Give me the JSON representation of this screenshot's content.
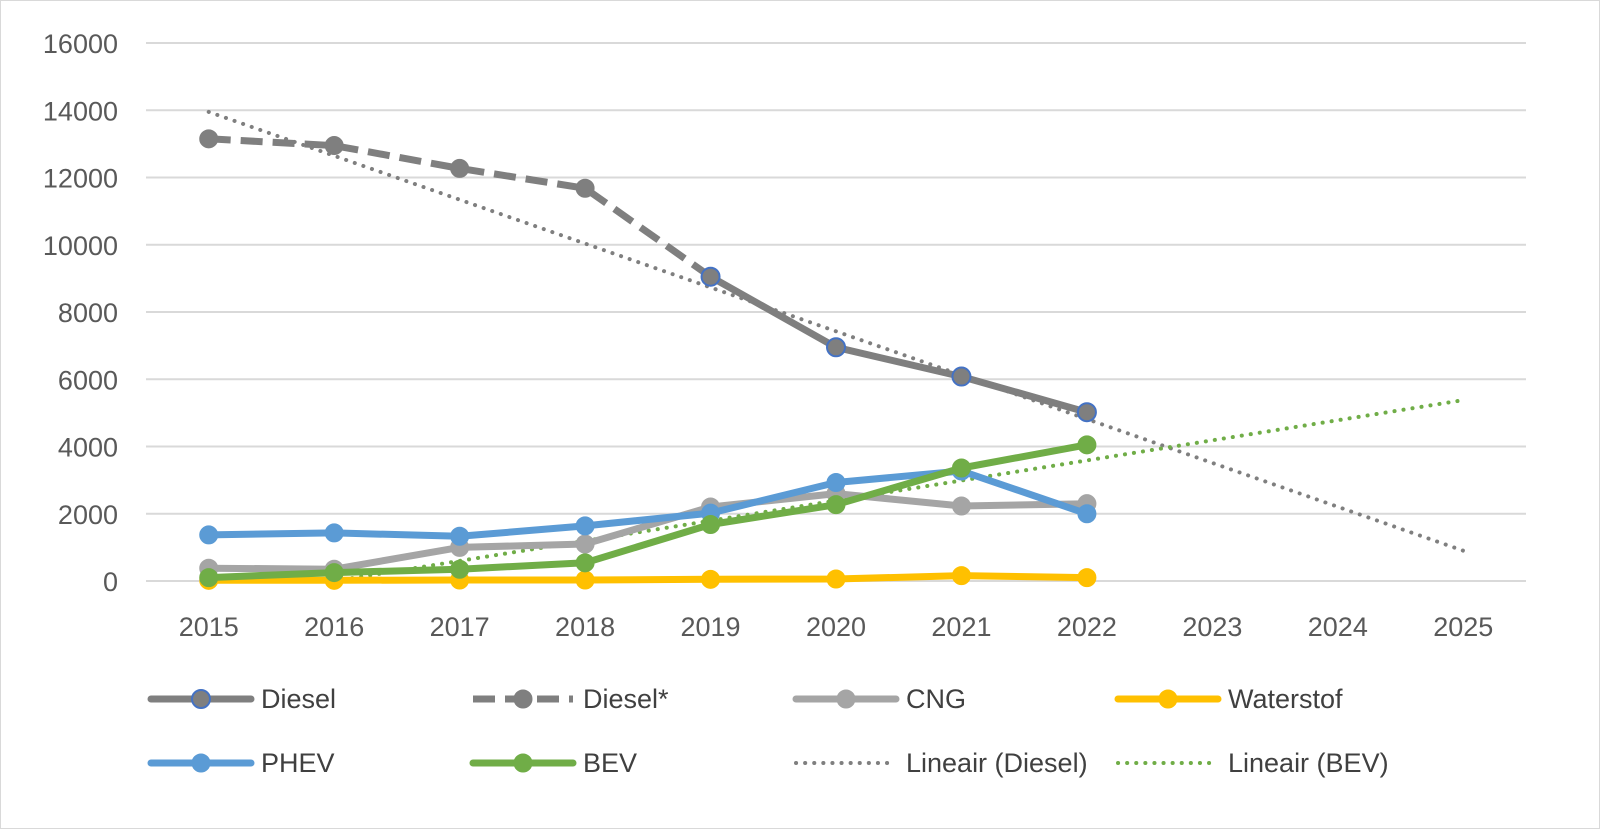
{
  "chart_data": {
    "type": "line",
    "title": "",
    "xlabel": "",
    "ylabel": "",
    "ylim": [
      0,
      16000
    ],
    "yticks": [
      "0",
      "2000",
      "4000",
      "6000",
      "8000",
      "10000",
      "12000",
      "14000",
      "16000"
    ],
    "categories": [
      "2015",
      "2016",
      "2017",
      "2018",
      "2019",
      "2020",
      "2021",
      "2022",
      "2023",
      "2024",
      "2025"
    ],
    "grid": "horizontal",
    "legend_position": "bottom",
    "series": [
      {
        "name": "Diesel*",
        "color": "#7f7f7f",
        "style": "dashed",
        "marker": "circle",
        "values": [
          13150,
          12950,
          12270,
          11680,
          9050,
          null,
          null,
          null,
          null,
          null,
          null
        ]
      },
      {
        "name": "Diesel",
        "color": "#7f7f7f",
        "style": "solid",
        "marker": "circle-blue-outline",
        "values": [
          null,
          null,
          null,
          null,
          9050,
          6950,
          6080,
          5020,
          null,
          null,
          null
        ]
      },
      {
        "name": "CNG",
        "color": "#a5a5a5",
        "style": "solid",
        "marker": "circle",
        "values": [
          380,
          350,
          1000,
          1100,
          2200,
          2600,
          2230,
          2300,
          null,
          null,
          null
        ]
      },
      {
        "name": "Waterstof",
        "color": "#ffc000",
        "style": "solid",
        "marker": "circle",
        "values": [
          20,
          20,
          30,
          30,
          50,
          60,
          160,
          100,
          null,
          null,
          null
        ]
      },
      {
        "name": "PHEV",
        "color": "#5b9bd5",
        "style": "solid",
        "marker": "circle",
        "values": [
          1370,
          1430,
          1330,
          1640,
          2020,
          2930,
          3270,
          2000,
          null,
          null,
          null
        ]
      },
      {
        "name": "BEV",
        "color": "#70ad47",
        "style": "solid",
        "marker": "circle",
        "values": [
          100,
          250,
          350,
          540,
          1680,
          2270,
          3360,
          4050,
          null,
          null,
          null
        ]
      },
      {
        "name": "Lineair (Diesel)",
        "color": "#7f7f7f",
        "style": "dotted",
        "marker": "none",
        "values": [
          13950,
          null,
          null,
          null,
          null,
          null,
          null,
          null,
          null,
          null,
          900
        ]
      },
      {
        "name": "Lineair (BEV)",
        "color": "#70ad47",
        "style": "dotted",
        "marker": "none",
        "values": [
          null,
          0,
          null,
          null,
          null,
          null,
          null,
          null,
          null,
          null,
          5380
        ]
      }
    ],
    "legend": [
      {
        "label": "Diesel",
        "color": "#7f7f7f",
        "style": "solid",
        "marker": "circle-blue-outline"
      },
      {
        "label": "Diesel*",
        "color": "#7f7f7f",
        "style": "dashed",
        "marker": "circle"
      },
      {
        "label": "CNG",
        "color": "#a5a5a5",
        "style": "solid",
        "marker": "circle"
      },
      {
        "label": "Waterstof",
        "color": "#ffc000",
        "style": "solid",
        "marker": "circle"
      },
      {
        "label": "PHEV",
        "color": "#5b9bd5",
        "style": "solid",
        "marker": "circle"
      },
      {
        "label": "BEV",
        "color": "#70ad47",
        "style": "solid",
        "marker": "circle"
      },
      {
        "label": "Lineair (Diesel)",
        "color": "#7f7f7f",
        "style": "dotted",
        "marker": "none"
      },
      {
        "label": "Lineair (BEV)",
        "color": "#70ad47",
        "style": "dotted",
        "marker": "none"
      }
    ]
  }
}
